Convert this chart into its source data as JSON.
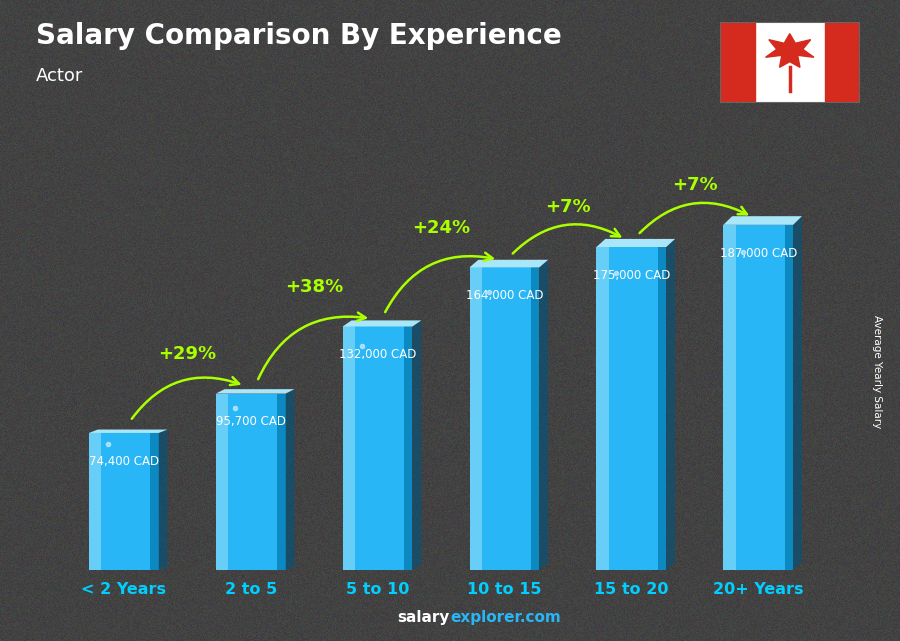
{
  "title": "Salary Comparison By Experience",
  "subtitle": "Actor",
  "categories": [
    "< 2 Years",
    "2 to 5",
    "5 to 10",
    "10 to 15",
    "15 to 20",
    "20+ Years"
  ],
  "values": [
    74400,
    95700,
    132000,
    164000,
    175000,
    187000
  ],
  "labels": [
    "74,400 CAD",
    "95,700 CAD",
    "132,000 CAD",
    "164,000 CAD",
    "175,000 CAD",
    "187,000 CAD"
  ],
  "pct_changes": [
    "+29%",
    "+38%",
    "+24%",
    "+7%",
    "+7%"
  ],
  "bar_color_main": "#29b6f6",
  "bar_color_light": "#7dd8f8",
  "bar_color_dark": "#0077aa",
  "bar_color_top": "#a8e6f8",
  "bg_color": "#3a3a3a",
  "title_color": "#ffffff",
  "label_color": "#ffffff",
  "pct_color": "#aaff00",
  "xlabel_color": "#00cfff",
  "watermark_bold": "salary",
  "watermark_rest": "explorer.com",
  "ylabel_text": "Average Yearly Salary",
  "ylim_max": 215000,
  "bar_width": 0.55
}
